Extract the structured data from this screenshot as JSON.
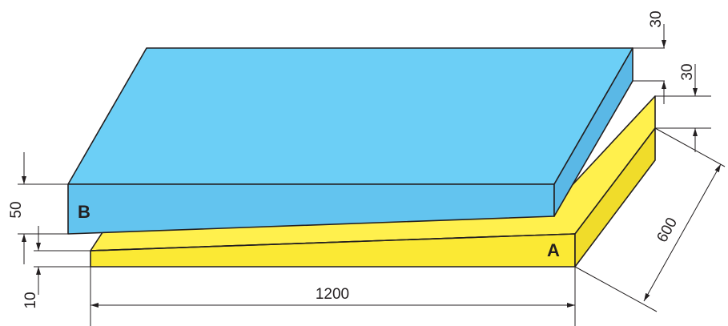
{
  "colors": {
    "slab_b_top": "#6ccff6",
    "slab_b_front": "#63c4ef",
    "slab_b_side": "#5ab8e6",
    "slab_a_top": "#fff04d",
    "slab_a_front": "#fbe934",
    "slab_a_side": "#f0dc2a",
    "lines": "#231f20"
  },
  "labels": {
    "slab_a": "A",
    "slab_b": "B"
  },
  "dimensions": {
    "length": "1200",
    "width": "600",
    "b_thickness": "50",
    "a_min_thickness": "10",
    "b_slope_rise": "30",
    "a_slope_rise": "30"
  }
}
